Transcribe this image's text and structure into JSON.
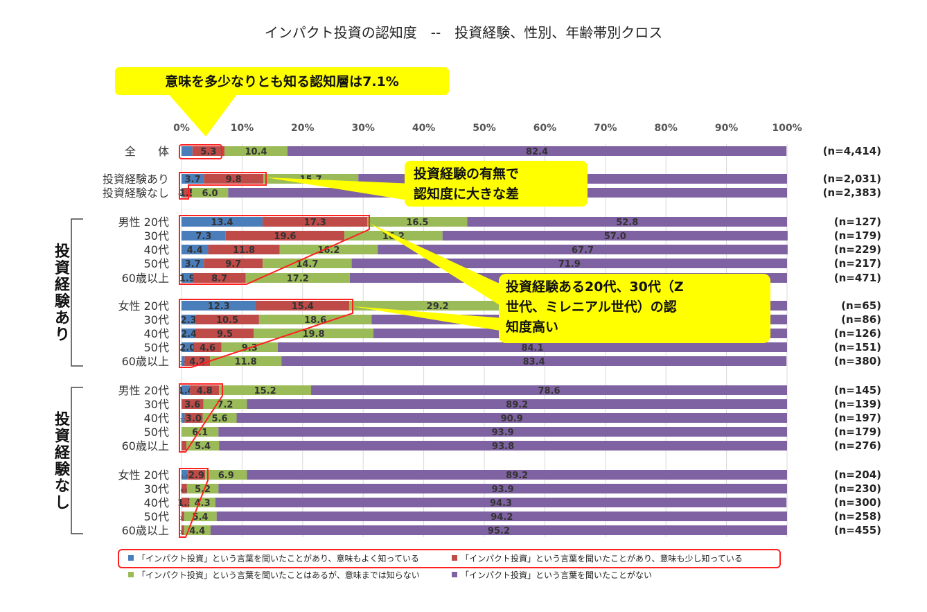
{
  "title": "インパクト投資の認知度　--　投資経験、性別、年齢帯別クロス",
  "chart_data": {
    "type": "bar",
    "orientation": "horizontal",
    "stacked": "percent",
    "xlim": [
      0,
      100
    ],
    "xticks": [
      "0%",
      "10%",
      "20%",
      "30%",
      "40%",
      "50%",
      "60%",
      "70%",
      "80%",
      "90%",
      "100%"
    ],
    "series": [
      {
        "name": "「インパクト投資」という言葉を聞いたことがあり、意味もよく知っている",
        "color": "#4a7ebb"
      },
      {
        "name": "「インパクト投資」という言葉を聞いたことがあり、意味も少し知っている",
        "color": "#be4b48"
      },
      {
        "name": "「インパクト投資」という言葉を聞いたことはあるが、意味までは知らない",
        "color": "#9bbb59"
      },
      {
        "name": "「インパクト投資」という言葉を聞いたことがない",
        "color": "#7f62a1"
      }
    ],
    "rows": [
      {
        "label": "全　　体",
        "n": "(n=4,414)",
        "values": [
          1.8,
          5.3,
          10.4,
          82.4
        ],
        "labels": [
          "",
          "5.3",
          "10.4",
          "82.4"
        ]
      },
      {
        "label": "投資経験あり",
        "n": "(n=2,031)",
        "values": [
          3.7,
          9.8,
          15.7,
          70.8
        ],
        "labels": [
          "3.7",
          "9.8",
          "15.7",
          ""
        ]
      },
      {
        "label": "投資経験なし",
        "n": "(n=2,383)",
        "values": [
          0.2,
          1.5,
          6.0,
          92.3
        ],
        "labels": [
          "0.2",
          "1.5",
          "6.0",
          ""
        ]
      },
      {
        "label": "男性 20代",
        "n": "(n=127)",
        "values": [
          13.4,
          17.3,
          16.5,
          52.8
        ],
        "labels": [
          "13.4",
          "17.3",
          "16.5",
          "52.8"
        ]
      },
      {
        "label": "30代",
        "n": "(n=179)",
        "values": [
          7.3,
          19.6,
          16.2,
          57.0
        ],
        "labels": [
          "7.3",
          "19.6",
          "16.2",
          "57.0"
        ]
      },
      {
        "label": "40代",
        "n": "(n=229)",
        "values": [
          4.4,
          11.8,
          16.2,
          67.7
        ],
        "labels": [
          "4.4",
          "11.8",
          "16.2",
          "67.7"
        ]
      },
      {
        "label": "50代",
        "n": "(n=217)",
        "values": [
          3.7,
          9.7,
          14.7,
          71.9
        ],
        "labels": [
          "3.7",
          "9.7",
          "14.7",
          "71.9"
        ]
      },
      {
        "label": "60歳以上",
        "n": "(n=471)",
        "values": [
          1.9,
          8.7,
          17.2,
          72.2
        ],
        "labels": [
          "1.9",
          "8.7",
          "17.2",
          ""
        ]
      },
      {
        "label": "女性 20代",
        "n": "(n=65)",
        "values": [
          12.3,
          15.4,
          29.2,
          43.1
        ],
        "labels": [
          "12.3",
          "15.4",
          "29.2",
          ""
        ]
      },
      {
        "label": "30代",
        "n": "(n=86)",
        "values": [
          2.3,
          10.5,
          18.6,
          68.6
        ],
        "labels": [
          "2.3",
          "10.5",
          "18.6",
          ""
        ]
      },
      {
        "label": "40代",
        "n": "(n=126)",
        "values": [
          2.4,
          9.5,
          19.8,
          68.3
        ],
        "labels": [
          "2.4",
          "9.5",
          "19.8",
          ""
        ]
      },
      {
        "label": "50代",
        "n": "(n=151)",
        "values": [
          2.0,
          4.6,
          9.3,
          84.1
        ],
        "labels": [
          "2.0",
          "4.6",
          "9.3",
          "84.1"
        ]
      },
      {
        "label": "60歳以上",
        "n": "(n=380)",
        "values": [
          0.5,
          4.2,
          11.8,
          83.4
        ],
        "labels": [
          "0.5",
          "4.2",
          "11.8",
          "83.4"
        ]
      },
      {
        "label": "男性 20代",
        "n": "(n=145)",
        "values": [
          1.4,
          4.8,
          15.2,
          78.6
        ],
        "labels": [
          "1.4",
          "4.8",
          "15.2",
          "78.6"
        ]
      },
      {
        "label": "30代",
        "n": "(n=139)",
        "values": [
          0.0,
          3.6,
          7.2,
          89.2
        ],
        "labels": [
          "",
          "3.6",
          "7.2",
          "89.2"
        ]
      },
      {
        "label": "40代",
        "n": "(n=197)",
        "values": [
          0.5,
          3.0,
          5.6,
          90.9
        ],
        "labels": [
          "0.5",
          "3.0",
          "5.6",
          "90.9"
        ]
      },
      {
        "label": "50代",
        "n": "(n=179)",
        "values": [
          0.0,
          0.0,
          6.1,
          93.9
        ],
        "labels": [
          "",
          "",
          "6.1",
          "93.9"
        ]
      },
      {
        "label": "60歳以上",
        "n": "(n=276)",
        "values": [
          0.0,
          0.8,
          5.4,
          93.8
        ],
        "labels": [
          "",
          "",
          "5.4",
          "93.8"
        ]
      },
      {
        "label": "女性 20代",
        "n": "(n=204)",
        "values": [
          1.0,
          2.9,
          6.9,
          89.2
        ],
        "labels": [
          "1.0",
          "2.9",
          "6.9",
          "89.2"
        ]
      },
      {
        "label": "30代",
        "n": "(n=230)",
        "values": [
          0.0,
          0.9,
          5.2,
          93.9
        ],
        "labels": [
          "",
          "0.9",
          "5.2",
          "93.9"
        ]
      },
      {
        "label": "40代",
        "n": "(n=300)",
        "values": [
          0.0,
          1.3,
          4.3,
          94.3
        ],
        "labels": [
          "",
          "1.3",
          "4.3",
          "94.3"
        ]
      },
      {
        "label": "50代",
        "n": "(n=258)",
        "values": [
          0.0,
          0.4,
          5.4,
          94.2
        ],
        "labels": [
          "",
          "0.4",
          "5.4",
          "94.2"
        ]
      },
      {
        "label": "60歳以上",
        "n": "(n=455)",
        "values": [
          0.0,
          0.4,
          4.4,
          95.2
        ],
        "labels": [
          "",
          "0.4",
          "4.4",
          "95.2"
        ]
      }
    ],
    "group_labels": [
      "投資経験あり",
      "投資経験なし"
    ],
    "legend_position": "bottom",
    "grid": true
  },
  "annotations": {
    "callout_top": "意味を多少なりとも知る認知層は7.1%",
    "callout_diff": [
      "投資経験の有無で",
      "認知度に大きな差"
    ],
    "callout_young": [
      "投資経験ある20代、30代（Z",
      "世代、ミレニアル世代）の認",
      "知度高い"
    ]
  }
}
